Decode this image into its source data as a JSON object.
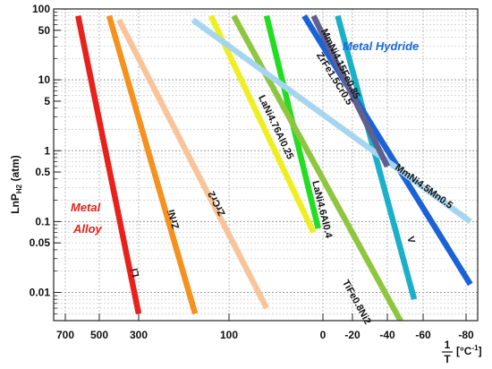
{
  "chart_data": {
    "type": "line",
    "y_scale": "log",
    "grid": true,
    "ylim": [
      0.004,
      100
    ],
    "y_ticks": [
      {
        "value": 100,
        "label": "100"
      },
      {
        "value": 50,
        "label": "50"
      },
      {
        "value": 10,
        "label": "10"
      },
      {
        "value": 5,
        "label": "5"
      },
      {
        "value": 1,
        "label": "1"
      },
      {
        "value": 0.5,
        "label": "0.5"
      },
      {
        "value": 0.1,
        "label": "0.1"
      },
      {
        "value": 0.05,
        "label": "0.05"
      },
      {
        "value": 0.01,
        "label": "0.01"
      }
    ],
    "x_ticks": [
      {
        "value": 700,
        "label": "700"
      },
      {
        "value": 500,
        "label": "500"
      },
      {
        "value": 300,
        "label": "300"
      },
      {
        "value": 100,
        "label": "100"
      },
      {
        "value": 0,
        "label": "0"
      },
      {
        "value": -20,
        "label": "-20"
      },
      {
        "value": -40,
        "label": "-40"
      },
      {
        "value": -60,
        "label": "-60"
      },
      {
        "value": -80,
        "label": "-80"
      }
    ],
    "ylabel": {
      "main": "LnP",
      "sub": "H2",
      "unit": " (atm)"
    },
    "xlabel": {
      "num": "1",
      "den": "T",
      "unit": "[°C",
      "unit_sup": "-1",
      "unit_end": "]"
    },
    "region_labels": {
      "metal_hydride": "Metal Hydride",
      "metal_alloy_1": "Metal",
      "metal_alloy_2": "Alloy"
    },
    "series": [
      {
        "name": "Li",
        "color": "#e8211b",
        "x": [
          625,
          300
        ],
        "y": [
          80,
          0.005
        ]
      },
      {
        "name": "ZrNi",
        "color": "#f5911e",
        "x": [
          450,
          175
        ],
        "y": [
          80,
          0.005
        ]
      },
      {
        "name": "ZrCr2",
        "color": "#f9c49a",
        "x": [
          400,
          60
        ],
        "y": [
          70,
          0.006
        ]
      },
      {
        "name": "LaNi4.76Al0.25",
        "color": "#eeee22",
        "x": [
          140,
          10
        ],
        "y": [
          80,
          0.07
        ]
      },
      {
        "name": "LaNi4.6Al0.4",
        "color": "#22dd22",
        "x": [
          60,
          5
        ],
        "y": [
          80,
          0.08
        ]
      },
      {
        "name": "TiFe0.8Ni2",
        "color": "#8ec63f",
        "x": [
          95,
          -50
        ],
        "y": [
          80,
          0.003
        ]
      },
      {
        "name": "V",
        "color": "#1ab0c8",
        "x": [
          -10,
          -55
        ],
        "y": [
          80,
          0.008
        ]
      },
      {
        "name": "ZrFe1.5Cr0.5",
        "color": "#1a62d8",
        "x": [
          20,
          -82
        ],
        "y": [
          80,
          0.013
        ]
      },
      {
        "name": "MmNi4.5Mn0.5",
        "color": "#a5d5ef",
        "x": [
          180,
          -82
        ],
        "y": [
          70,
          0.1
        ]
      },
      {
        "name": "MmNi4.15Fe0.85",
        "color": "#606090",
        "x": [
          10,
          -40
        ],
        "y": [
          80,
          0.6
        ]
      }
    ]
  }
}
